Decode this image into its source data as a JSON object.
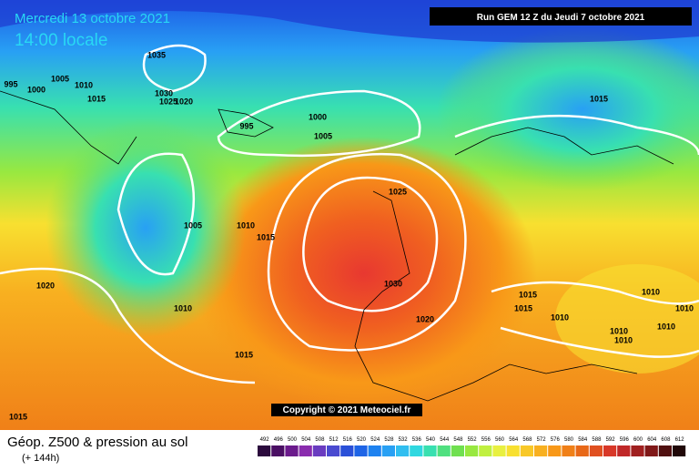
{
  "header": {
    "date": "Mercredi 13 octobre 2021",
    "time": "14:00 locale",
    "run": "Run GEM 12 Z du Jeudi 7 octobre 2021"
  },
  "copyright": "Copyright © 2021 Meteociel.fr",
  "footer": {
    "title": "Géop. Z500 & pression au sol",
    "lead": "(+ 144h)"
  },
  "isobar_labels": [
    995,
    1000,
    1005,
    1010,
    1015,
    1035,
    1030,
    1025,
    1020,
    995,
    1000,
    1005,
    1015,
    1025,
    1005,
    1010,
    1015,
    1020,
    1010,
    1030,
    1020,
    1015,
    1015,
    1010,
    1010,
    1010,
    1010,
    1010,
    1010,
    1015,
    1015
  ],
  "scale": {
    "values": [
      492,
      496,
      500,
      504,
      508,
      512,
      516,
      520,
      524,
      528,
      532,
      536,
      540,
      544,
      548,
      552,
      556,
      560,
      564,
      568,
      572,
      576,
      580,
      584,
      588,
      592,
      596,
      600,
      604,
      608,
      612
    ],
    "colors": [
      "#2b0a3d",
      "#4a0f63",
      "#6b1a8c",
      "#8a2cae",
      "#6a3cc0",
      "#4a4ad0",
      "#2a50d8",
      "#1e64e6",
      "#1e82f0",
      "#28a0f4",
      "#30bef0",
      "#30d8e0",
      "#38e0b0",
      "#50e080",
      "#70e050",
      "#98e840",
      "#c0f040",
      "#e8f040",
      "#f8e030",
      "#f8c828",
      "#f8b020",
      "#f89818",
      "#f08018",
      "#e86818",
      "#e05020",
      "#d83828",
      "#c02828",
      "#a02020",
      "#801818",
      "#501010",
      "#200808"
    ]
  }
}
